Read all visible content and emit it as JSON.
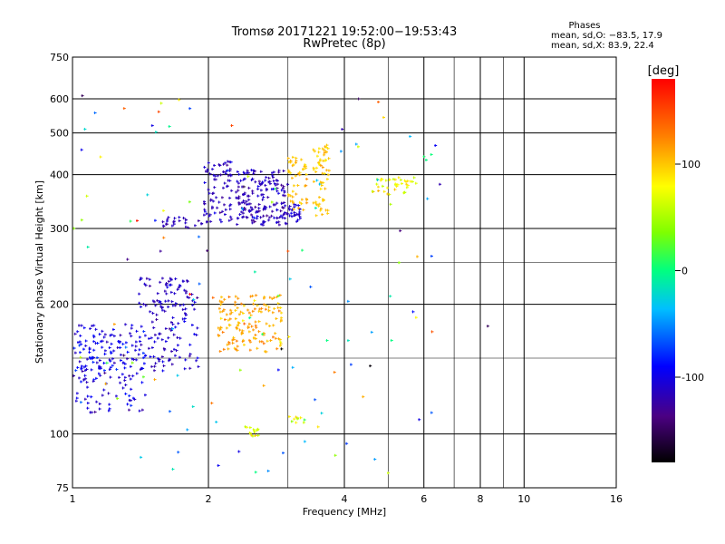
{
  "header": {
    "title_line1": "Tromsø 20171221 19:52:00−19:53:43",
    "title_line2": "RwPretec (8p)",
    "phases_title": "Phases",
    "phases_o": "mean, sd,O: −83.5, 17.9",
    "phases_x": "mean, sd,X:  83.9, 22.4"
  },
  "chart_data": {
    "type": "scatter",
    "xlabel": "Frequency [MHz]",
    "ylabel": "Stationary phase Virtual Height [km]",
    "xscale": "log",
    "yscale": "log",
    "xlim": [
      1,
      16
    ],
    "ylim": [
      75,
      750
    ],
    "x_ticks": [
      1,
      2,
      4,
      6,
      8,
      10,
      16
    ],
    "y_ticks": [
      75,
      100,
      200,
      300,
      400,
      500,
      600,
      750
    ],
    "x_grid": [
      2,
      4,
      6,
      8,
      10
    ],
    "x_minor_grid": [
      3,
      5,
      7,
      9
    ],
    "y_grid": [
      100,
      200,
      300,
      400,
      500,
      600
    ],
    "y_minor_grid": [
      150,
      250
    ],
    "colorbar": {
      "label": "[deg]",
      "range": [
        -180,
        180
      ],
      "ticks": [
        100,
        0,
        -100
      ]
    },
    "colormap": [
      [
        0,
        "#000000"
      ],
      [
        0.12,
        "#4b0082"
      ],
      [
        0.25,
        "#0000ff"
      ],
      [
        0.4,
        "#00bfff"
      ],
      [
        0.5,
        "#00ff80"
      ],
      [
        0.6,
        "#7fff00"
      ],
      [
        0.72,
        "#ffff00"
      ],
      [
        0.85,
        "#ff8000"
      ],
      [
        1,
        "#ff0000"
      ]
    ],
    "clusters": [
      {
        "phase": -105,
        "phase_sd": 15,
        "x_range": [
          1.0,
          1.45
        ],
        "y_range": [
          112,
          180
        ],
        "count": 150
      },
      {
        "phase": -90,
        "phase_sd": 10,
        "x_range": [
          1.0,
          1.35
        ],
        "y_range": [
          140,
          165
        ],
        "count": 40
      },
      {
        "phase": -110,
        "phase_sd": 12,
        "x_range": [
          1.4,
          1.9
        ],
        "y_range": [
          140,
          230
        ],
        "count": 150
      },
      {
        "phase": -115,
        "phase_sd": 10,
        "x_range": [
          1.55,
          1.95
        ],
        "y_range": [
          300,
          320
        ],
        "count": 25
      },
      {
        "phase": -115,
        "phase_sd": 10,
        "x_range": [
          1.95,
          2.25
        ],
        "y_range": [
          310,
          430
        ],
        "count": 80
      },
      {
        "phase": -115,
        "phase_sd": 12,
        "x_range": [
          2.3,
          3.0
        ],
        "y_range": [
          305,
          410
        ],
        "count": 180
      },
      {
        "phase": -110,
        "phase_sd": 8,
        "x_range": [
          2.9,
          3.2
        ],
        "y_range": [
          310,
          345
        ],
        "count": 30
      },
      {
        "phase": 110,
        "phase_sd": 15,
        "x_range": [
          2.1,
          2.9
        ],
        "y_range": [
          155,
          210
        ],
        "count": 150
      },
      {
        "phase": 105,
        "phase_sd": 12,
        "x_range": [
          3.0,
          3.3
        ],
        "y_range": [
          330,
          440
        ],
        "count": 50
      },
      {
        "phase": 100,
        "phase_sd": 12,
        "x_range": [
          3.4,
          3.7
        ],
        "y_range": [
          320,
          470
        ],
        "count": 60
      },
      {
        "phase": 80,
        "phase_sd": 20,
        "x_range": [
          4.6,
          5.9
        ],
        "y_range": [
          360,
          395
        ],
        "count": 40
      },
      {
        "phase": 70,
        "phase_sd": 20,
        "x_range": [
          2.4,
          2.6
        ],
        "y_range": [
          98,
          104
        ],
        "count": 15
      },
      {
        "phase": 60,
        "phase_sd": 30,
        "x_range": [
          3.0,
          3.3
        ],
        "y_range": [
          106,
          110
        ],
        "count": 10
      },
      {
        "phase": 0,
        "phase_sd": 120,
        "x_range": [
          1.0,
          6.5
        ],
        "y_range": [
          75,
          620
        ],
        "count": 120
      }
    ],
    "points": [
      {
        "x": 1.05,
        "y": 610,
        "phase": -150
      },
      {
        "x": 1.3,
        "y": 570,
        "phase": 140
      },
      {
        "x": 1.55,
        "y": 560,
        "phase": 150
      },
      {
        "x": 1.5,
        "y": 520,
        "phase": -100
      },
      {
        "x": 4.3,
        "y": 600,
        "phase": -150
      },
      {
        "x": 4.75,
        "y": 590,
        "phase": 140
      },
      {
        "x": 3.95,
        "y": 510,
        "phase": -120
      },
      {
        "x": 6.5,
        "y": 380,
        "phase": -120
      },
      {
        "x": 8.3,
        "y": 178,
        "phase": -150
      },
      {
        "x": 5.85,
        "y": 108,
        "phase": -100
      },
      {
        "x": 2.25,
        "y": 520,
        "phase": 150
      }
    ]
  }
}
